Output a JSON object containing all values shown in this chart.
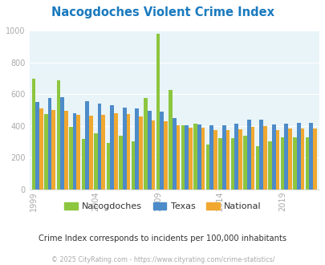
{
  "title": "Nacogdoches Violent Crime Index",
  "years": [
    1999,
    2000,
    2001,
    2002,
    2003,
    2004,
    2005,
    2006,
    2007,
    2008,
    2009,
    2010,
    2011,
    2012,
    2013,
    2014,
    2015,
    2016,
    2017,
    2018,
    2019,
    2020,
    2021
  ],
  "nacogdoches": [
    695,
    475,
    685,
    395,
    320,
    355,
    295,
    340,
    305,
    575,
    980,
    625,
    405,
    415,
    285,
    325,
    325,
    340,
    275,
    305,
    330,
    330,
    330
  ],
  "texas": [
    550,
    575,
    580,
    480,
    555,
    540,
    530,
    515,
    510,
    495,
    490,
    450,
    405,
    410,
    405,
    405,
    415,
    440,
    440,
    410,
    415,
    420,
    420
  ],
  "national": [
    510,
    500,
    495,
    470,
    465,
    470,
    480,
    475,
    460,
    435,
    430,
    405,
    390,
    390,
    375,
    375,
    380,
    395,
    400,
    375,
    385,
    385,
    385
  ],
  "nacogdoches_color": "#8dc63f",
  "texas_color": "#4d8bc9",
  "national_color": "#f0a830",
  "bg_color": "#e8f4f8",
  "title_color": "#1a7abf",
  "tick_color": "#aaaaaa",
  "subtitle": "Crime Index corresponds to incidents per 100,000 inhabitants",
  "copyright": "© 2025 CityRating.com - https://www.cityrating.com/crime-statistics/",
  "ylim": [
    0,
    1000
  ],
  "yticks": [
    0,
    200,
    400,
    600,
    800,
    1000
  ],
  "xtick_years": [
    1999,
    2004,
    2009,
    2014,
    2019
  ]
}
